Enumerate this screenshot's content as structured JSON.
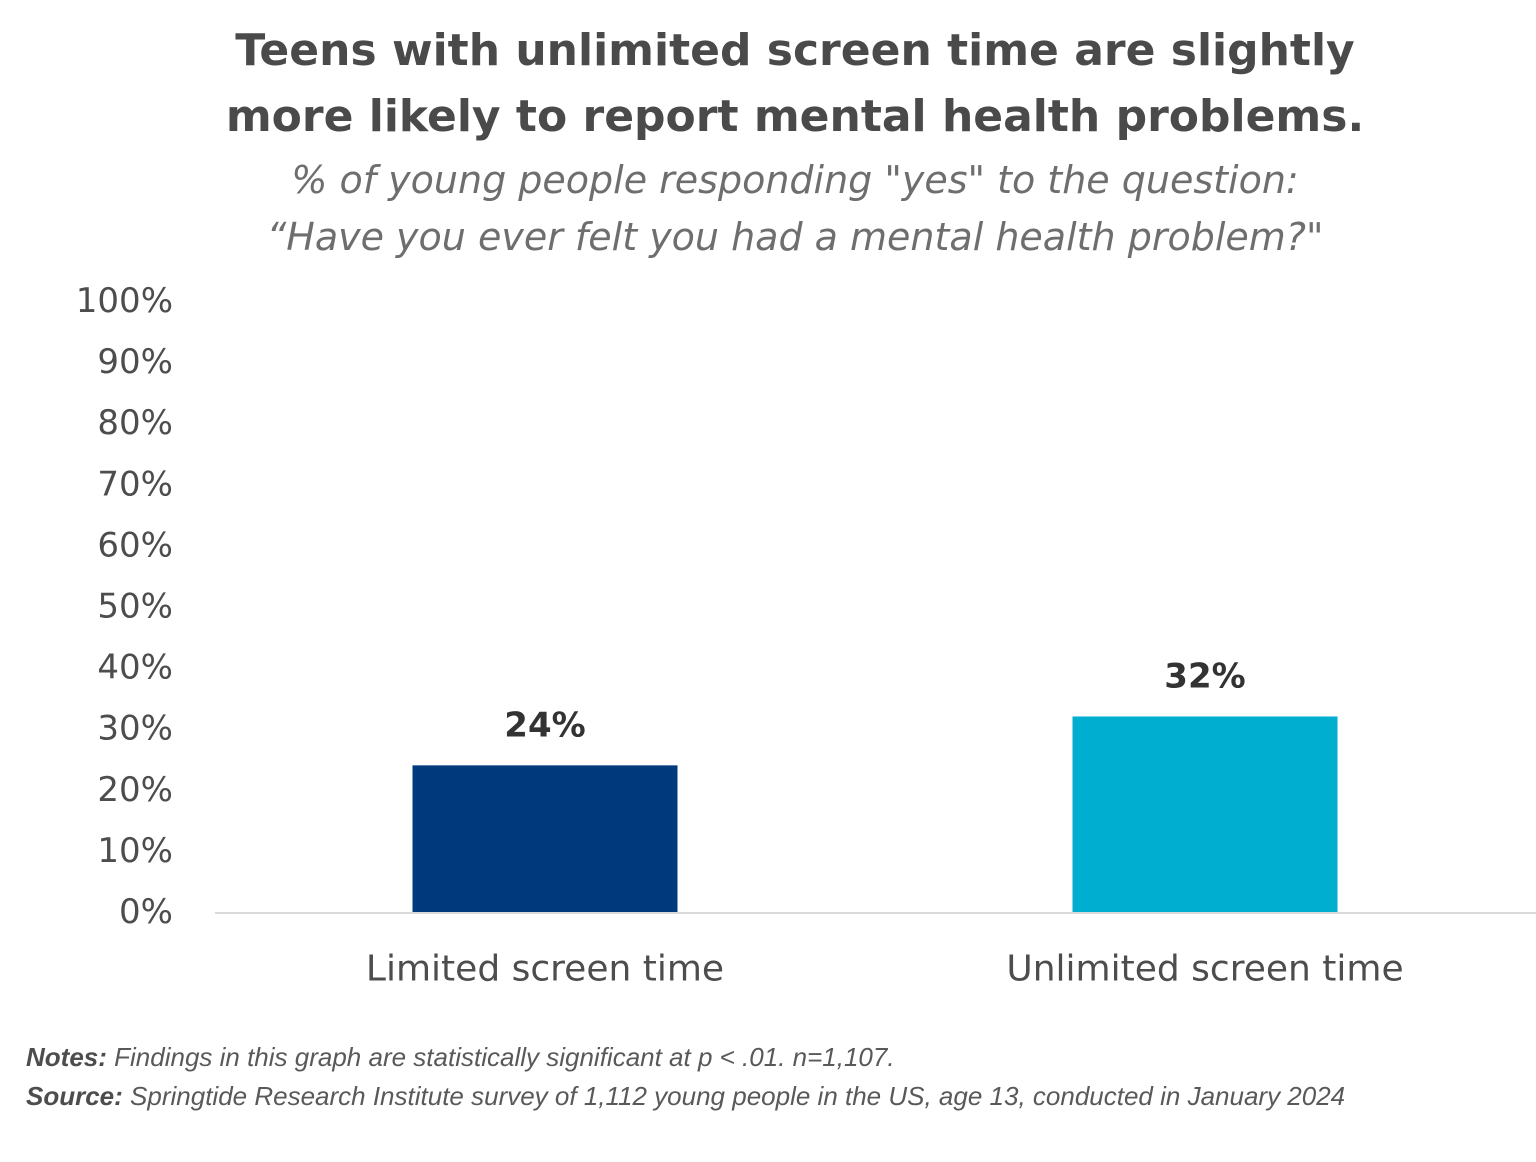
{
  "title": {
    "line1": "Teens with unlimited screen time are slightly",
    "line2": "more likely to report mental health problems."
  },
  "subtitle": {
    "line1": "% of young people responding \"yes\" to the question:",
    "line2": "“Have you ever felt you had a mental health problem?\""
  },
  "chart_data": {
    "type": "bar",
    "title": "Teens with unlimited screen time are slightly more likely to report mental health problems.",
    "subtitle": "% of young people responding \"yes\" to the question: “Have you ever felt you had a mental health problem?\"",
    "categories": [
      "Limited screen time",
      "Unlimited screen time"
    ],
    "values": [
      24,
      32
    ],
    "data_labels": [
      "24%",
      "32%"
    ],
    "colors": [
      "#003a7d",
      "#00aecf"
    ],
    "ylim": [
      0,
      100
    ],
    "yticks": [
      0,
      10,
      20,
      30,
      40,
      50,
      60,
      70,
      80,
      90,
      100
    ],
    "ytick_labels": [
      "0%",
      "10%",
      "20%",
      "30%",
      "40%",
      "50%",
      "60%",
      "70%",
      "80%",
      "90%",
      "100%"
    ],
    "grid": false,
    "legend": "none",
    "xlabel": "",
    "ylabel": ""
  },
  "notes": {
    "notes_label": "Notes:",
    "notes_text": " Findings in this graph are statistically significant at p < .01. n=1,107.",
    "source_label": "Source:",
    "source_text": " Springtide Research Institute survey of 1,112 young people in the US, age 13, conducted in January 2024"
  },
  "colors": {
    "axis_line": "#d9d9d9",
    "text": "#4d4d4d"
  }
}
